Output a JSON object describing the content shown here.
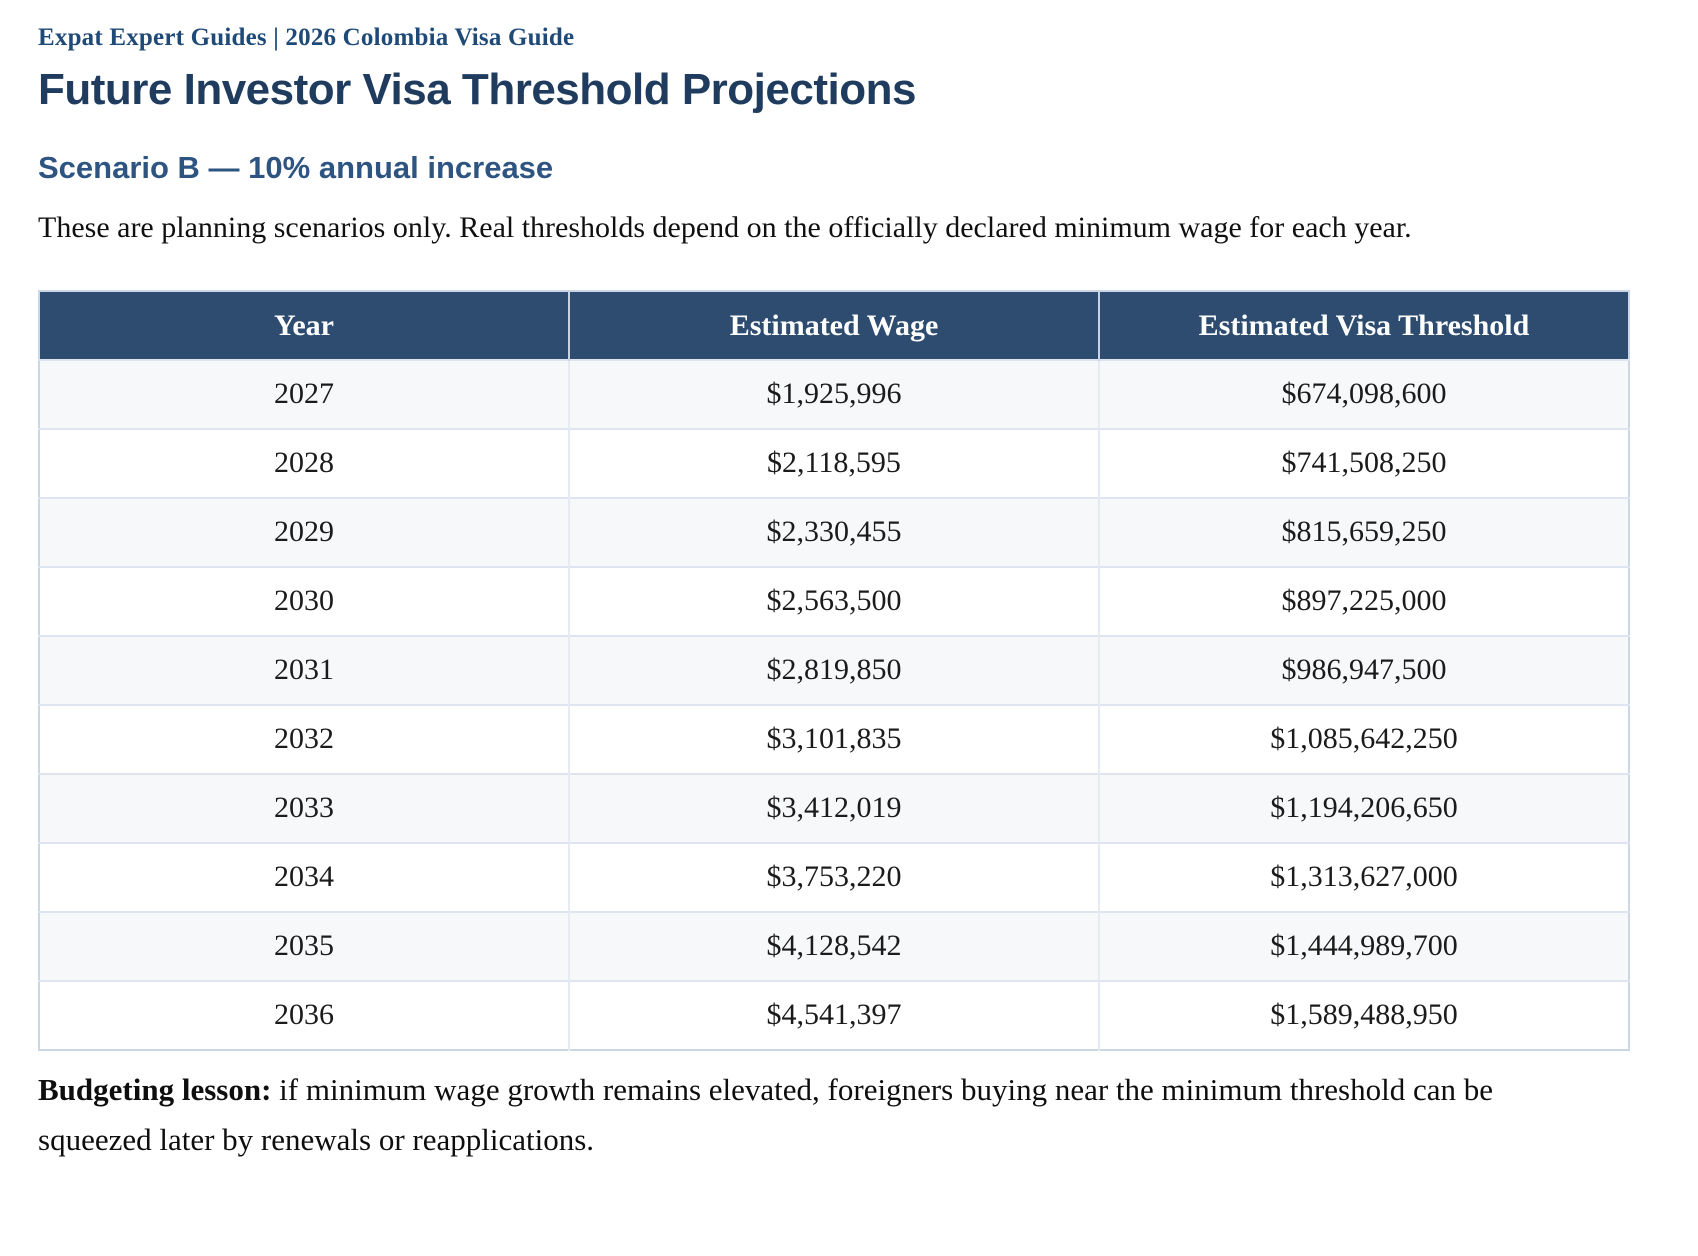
{
  "page": {
    "eyebrow": "Expat Expert Guides | 2026 Colombia Visa Guide",
    "title": "Future Investor Visa Threshold Projections",
    "scenario_heading": "Scenario B — 10% annual increase",
    "intro": "These are planning scenarios only. Real thresholds depend on the officially declared minimum wage for each year.",
    "note_lead": "Budgeting lesson:",
    "note_body": " if minimum wage growth remains elevated, foreigners buying near the minimum threshold can be squeezed later by renewals or reapplications."
  },
  "table": {
    "columns": [
      "Year",
      "Estimated Wage",
      "Estimated Visa Threshold"
    ],
    "rows": [
      {
        "year": "2027",
        "wage": "$1,925,996",
        "threshold": "$674,098,600"
      },
      {
        "year": "2028",
        "wage": "$2,118,595",
        "threshold": "$741,508,250"
      },
      {
        "year": "2029",
        "wage": "$2,330,455",
        "threshold": "$815,659,250"
      },
      {
        "year": "2030",
        "wage": "$2,563,500",
        "threshold": "$897,225,000"
      },
      {
        "year": "2031",
        "wage": "$2,819,850",
        "threshold": "$986,947,500"
      },
      {
        "year": "2032",
        "wage": "$3,101,835",
        "threshold": "$1,085,642,250"
      },
      {
        "year": "2033",
        "wage": "$3,412,019",
        "threshold": "$1,194,206,650"
      },
      {
        "year": "2034",
        "wage": "$3,753,220",
        "threshold": "$1,313,627,000"
      },
      {
        "year": "2035",
        "wage": "$4,128,542",
        "threshold": "$1,444,989,700"
      },
      {
        "year": "2036",
        "wage": "$4,541,397",
        "threshold": "$1,589,488,950"
      }
    ]
  },
  "colors": {
    "header_background": "#2d4c70",
    "header_text": "#ffffff",
    "row_stripe": "#f7f8fa",
    "table_border": "#ccd6e4",
    "eyebrow_blue": "#1f4a78",
    "title_navy": "#1f3b5e",
    "scenario_blue": "#2e5481"
  }
}
